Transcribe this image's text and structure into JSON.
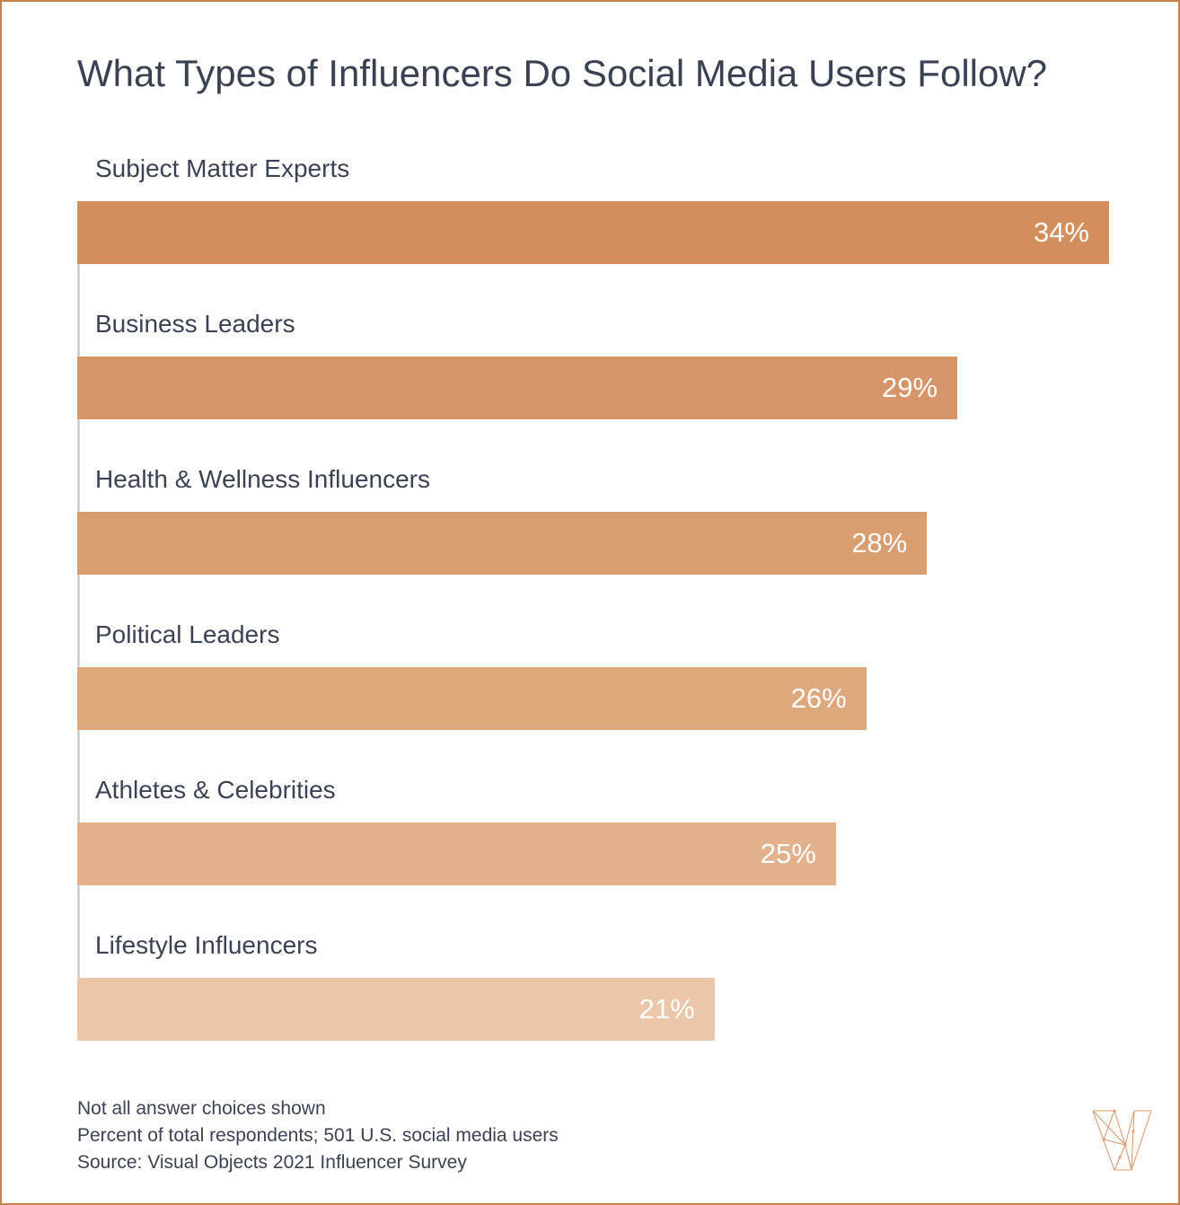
{
  "page": {
    "border_color": "#c5814e",
    "background_color": "#ffffff"
  },
  "header": {
    "title": "What Types of Influencers Do Social Media Users Follow?"
  },
  "chart_data": {
    "type": "bar",
    "orientation": "horizontal",
    "title": "What Types of Influencers Do Social Media Users Follow?",
    "categories": [
      "Subject Matter Experts",
      "Business Leaders",
      "Health & Wellness Influencers",
      "Political Leaders",
      "Athletes & Celebrities",
      "Lifestyle Influencers"
    ],
    "values": [
      34,
      29,
      28,
      26,
      25,
      21
    ],
    "value_labels": [
      "34%",
      "29%",
      "28%",
      "26%",
      "25%",
      "21%"
    ],
    "bar_colors": [
      "#d38e5e",
      "#d69669",
      "#d99e70",
      "#dea87d",
      "#e2b18c",
      "#ebc6a9"
    ],
    "value_label_color": "#ffffff",
    "category_label_color": "#3b4253",
    "axis_line_color": "#d4d4d4",
    "xlabel": "",
    "ylabel": "",
    "xlim": [
      0,
      34
    ],
    "grid": false,
    "legend": false
  },
  "footer": {
    "notes": [
      "Not all answer choices shown",
      "Percent of total respondents; 501 U.S. social media users",
      "Source: Visual Objects 2021 Influencer Survey"
    ]
  },
  "logo": {
    "name": "visual-objects-logo",
    "color": "#dc9b72"
  }
}
